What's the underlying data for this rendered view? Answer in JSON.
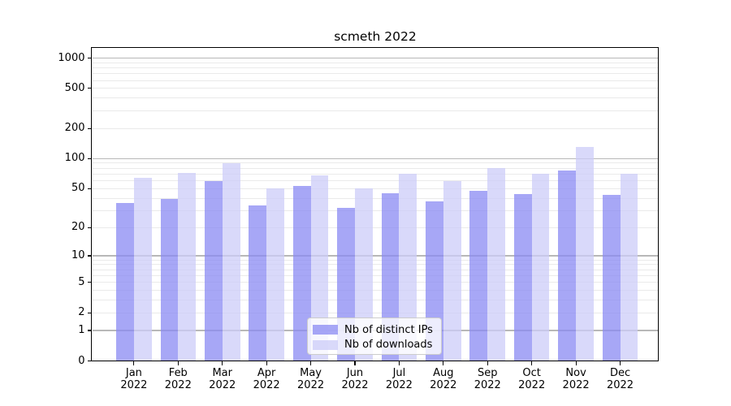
{
  "figure": {
    "title": "scmeth 2022"
  },
  "chart_data": {
    "type": "bar",
    "title": "scmeth 2022",
    "subtitle": "",
    "xlabel": "",
    "ylabel": "",
    "categories": [
      "Jan 2022",
      "Feb 2022",
      "Mar 2022",
      "Apr 2022",
      "May 2022",
      "Jun 2022",
      "Jul 2022",
      "Aug 2022",
      "Sep 2022",
      "Oct 2022",
      "Nov 2022",
      "Dec 2022"
    ],
    "series": [
      {
        "name": "Nb of distinct IPs",
        "color": "rgba(138,138,243,0.75)",
        "values": [
          36,
          39,
          60,
          34,
          53,
          32,
          45,
          37,
          47,
          44,
          76,
          43
        ]
      },
      {
        "name": "Nb of downloads",
        "color": "rgba(204,204,248,0.75)",
        "values": [
          64,
          72,
          90,
          50,
          68,
          50,
          71,
          60,
          80,
          71,
          130,
          70
        ]
      }
    ],
    "yscale": "log1p",
    "ylim": [
      0,
      1250
    ],
    "yticks": [
      0,
      1,
      2,
      5,
      10,
      20,
      50,
      100,
      200,
      500,
      1000
    ],
    "grid": {
      "enabled": true,
      "major_values": [
        1,
        10,
        100,
        1000
      ],
      "major_color": "#b8b8b8",
      "minor_color": "#eaeaea"
    },
    "legend_position": "lower-center",
    "legend_entries": [
      "Nb of distinct IPs",
      "Nb of downloads"
    ]
  }
}
